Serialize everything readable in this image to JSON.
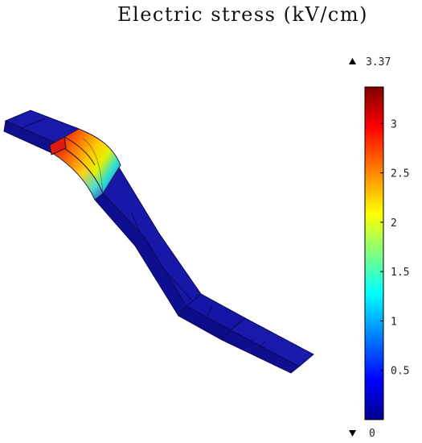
{
  "figure": {
    "title": "Electric stress (kV/cm)"
  },
  "colorbar": {
    "max_label": "3.37",
    "min_label": "0",
    "ticks": [
      "3",
      "2.5",
      "2",
      "1.5",
      "1",
      "0.5"
    ],
    "tick_values": [
      3,
      2.5,
      2,
      1.5,
      1,
      0.5
    ],
    "range": [
      0,
      3.37
    ],
    "colormap": [
      "#00008f",
      "#0000ff",
      "#00ffff",
      "#ffff00",
      "#ff0000",
      "#800000"
    ]
  },
  "colors": {
    "conductor_low": "#1212a8",
    "conductor_edge": "#0a0a55",
    "hotspot_peak": "#e62210"
  }
}
